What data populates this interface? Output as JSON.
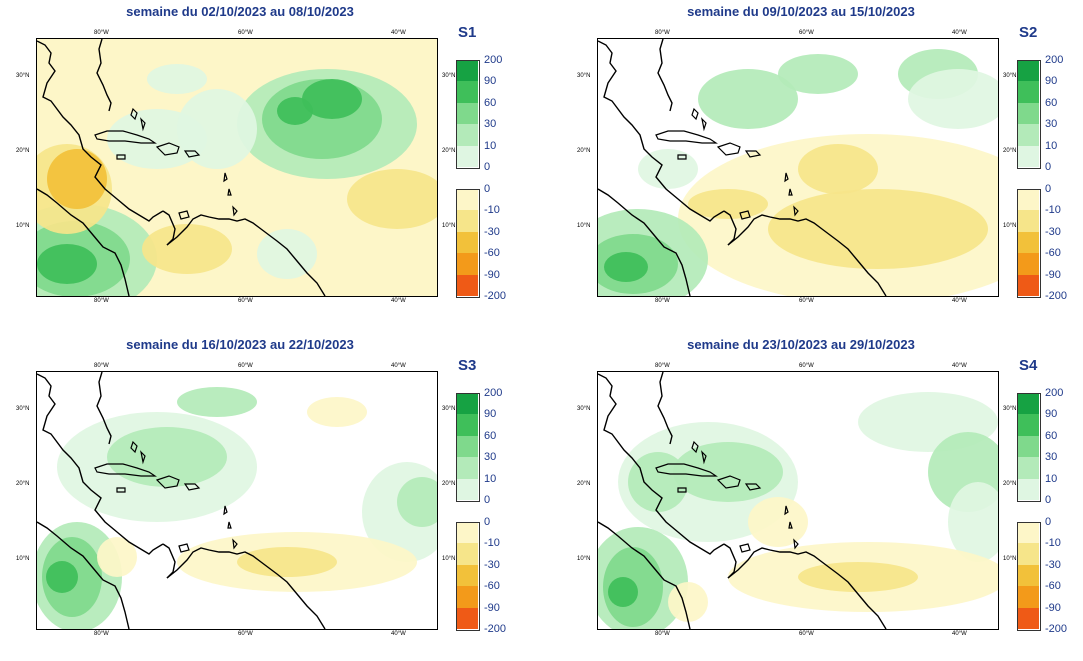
{
  "colors": {
    "pos": [
      "#dff6e2",
      "#b3eab9",
      "#7fd98c",
      "#3fbf5a",
      "#16a243"
    ],
    "neg": [
      "#fdf6c8",
      "#f6e58a",
      "#f2c13a",
      "#f39a1a",
      "#ef5a16"
    ],
    "title": "#1f3a8a"
  },
  "ticks": {
    "top": [
      "80°W",
      "60°W",
      "40°W"
    ],
    "bottom": [
      "80°W",
      "60°W",
      "40°W"
    ],
    "left": [
      "30°N",
      "20°N",
      "10°N"
    ]
  },
  "colorbar": {
    "positive": [
      "200",
      "90",
      "60",
      "30",
      "10",
      "0"
    ],
    "negative": [
      "0",
      "-10",
      "-30",
      "-60",
      "-90",
      "-200"
    ]
  },
  "panels": [
    {
      "id": "S1",
      "title": "semaine du 02/10/2023 au 08/10/2023",
      "label": "S1"
    },
    {
      "id": "S2",
      "title": "semaine du 09/10/2023 au 15/10/2023",
      "label": "S2"
    },
    {
      "id": "S3",
      "title": "semaine du 16/10/2023 au 22/10/2023",
      "label": "S3"
    },
    {
      "id": "S4",
      "title": "semaine du 23/10/2023 au 29/10/2023",
      "label": "S4"
    }
  ]
}
